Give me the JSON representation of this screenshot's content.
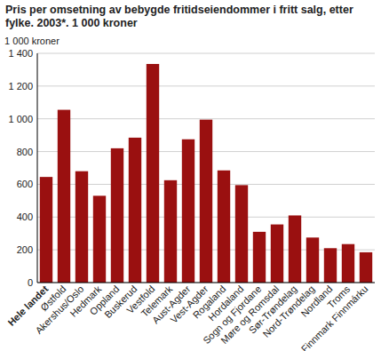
{
  "chart_data": {
    "type": "bar",
    "title": "Pris per omsetning av bebygde fritidseiendommer i fritt salg, etter fylke. 2003*. 1 000 kroner",
    "y_label": "1 000 kroner",
    "categories": [
      "Hele landet",
      "Østfold",
      "Akershus/Oslo",
      "Hedmark",
      "Oppland",
      "Buskerud",
      "Vestfold",
      "Telemark",
      "Aust-Agder",
      "Vest-Agder",
      "Rogaland",
      "Hordaland",
      "Sogn og Fjordane",
      "Møre og Romsdal",
      "Sør-Trøndelag",
      "Nord-Trøndelag",
      "Nordland",
      "Troms",
      "Finnmark Finnmárku"
    ],
    "values": [
      645,
      1055,
      680,
      530,
      820,
      885,
      1335,
      625,
      875,
      995,
      685,
      595,
      310,
      355,
      410,
      275,
      210,
      235,
      185
    ],
    "color": "#9a1010",
    "ylim": [
      0,
      1400
    ],
    "yticks": [
      0,
      200,
      400,
      600,
      800,
      {
        "value": 1000,
        "label": "1 000"
      },
      {
        "value": 1200,
        "label": "1 200"
      },
      {
        "value": 1400,
        "label": "1 400"
      }
    ],
    "grid": true
  }
}
